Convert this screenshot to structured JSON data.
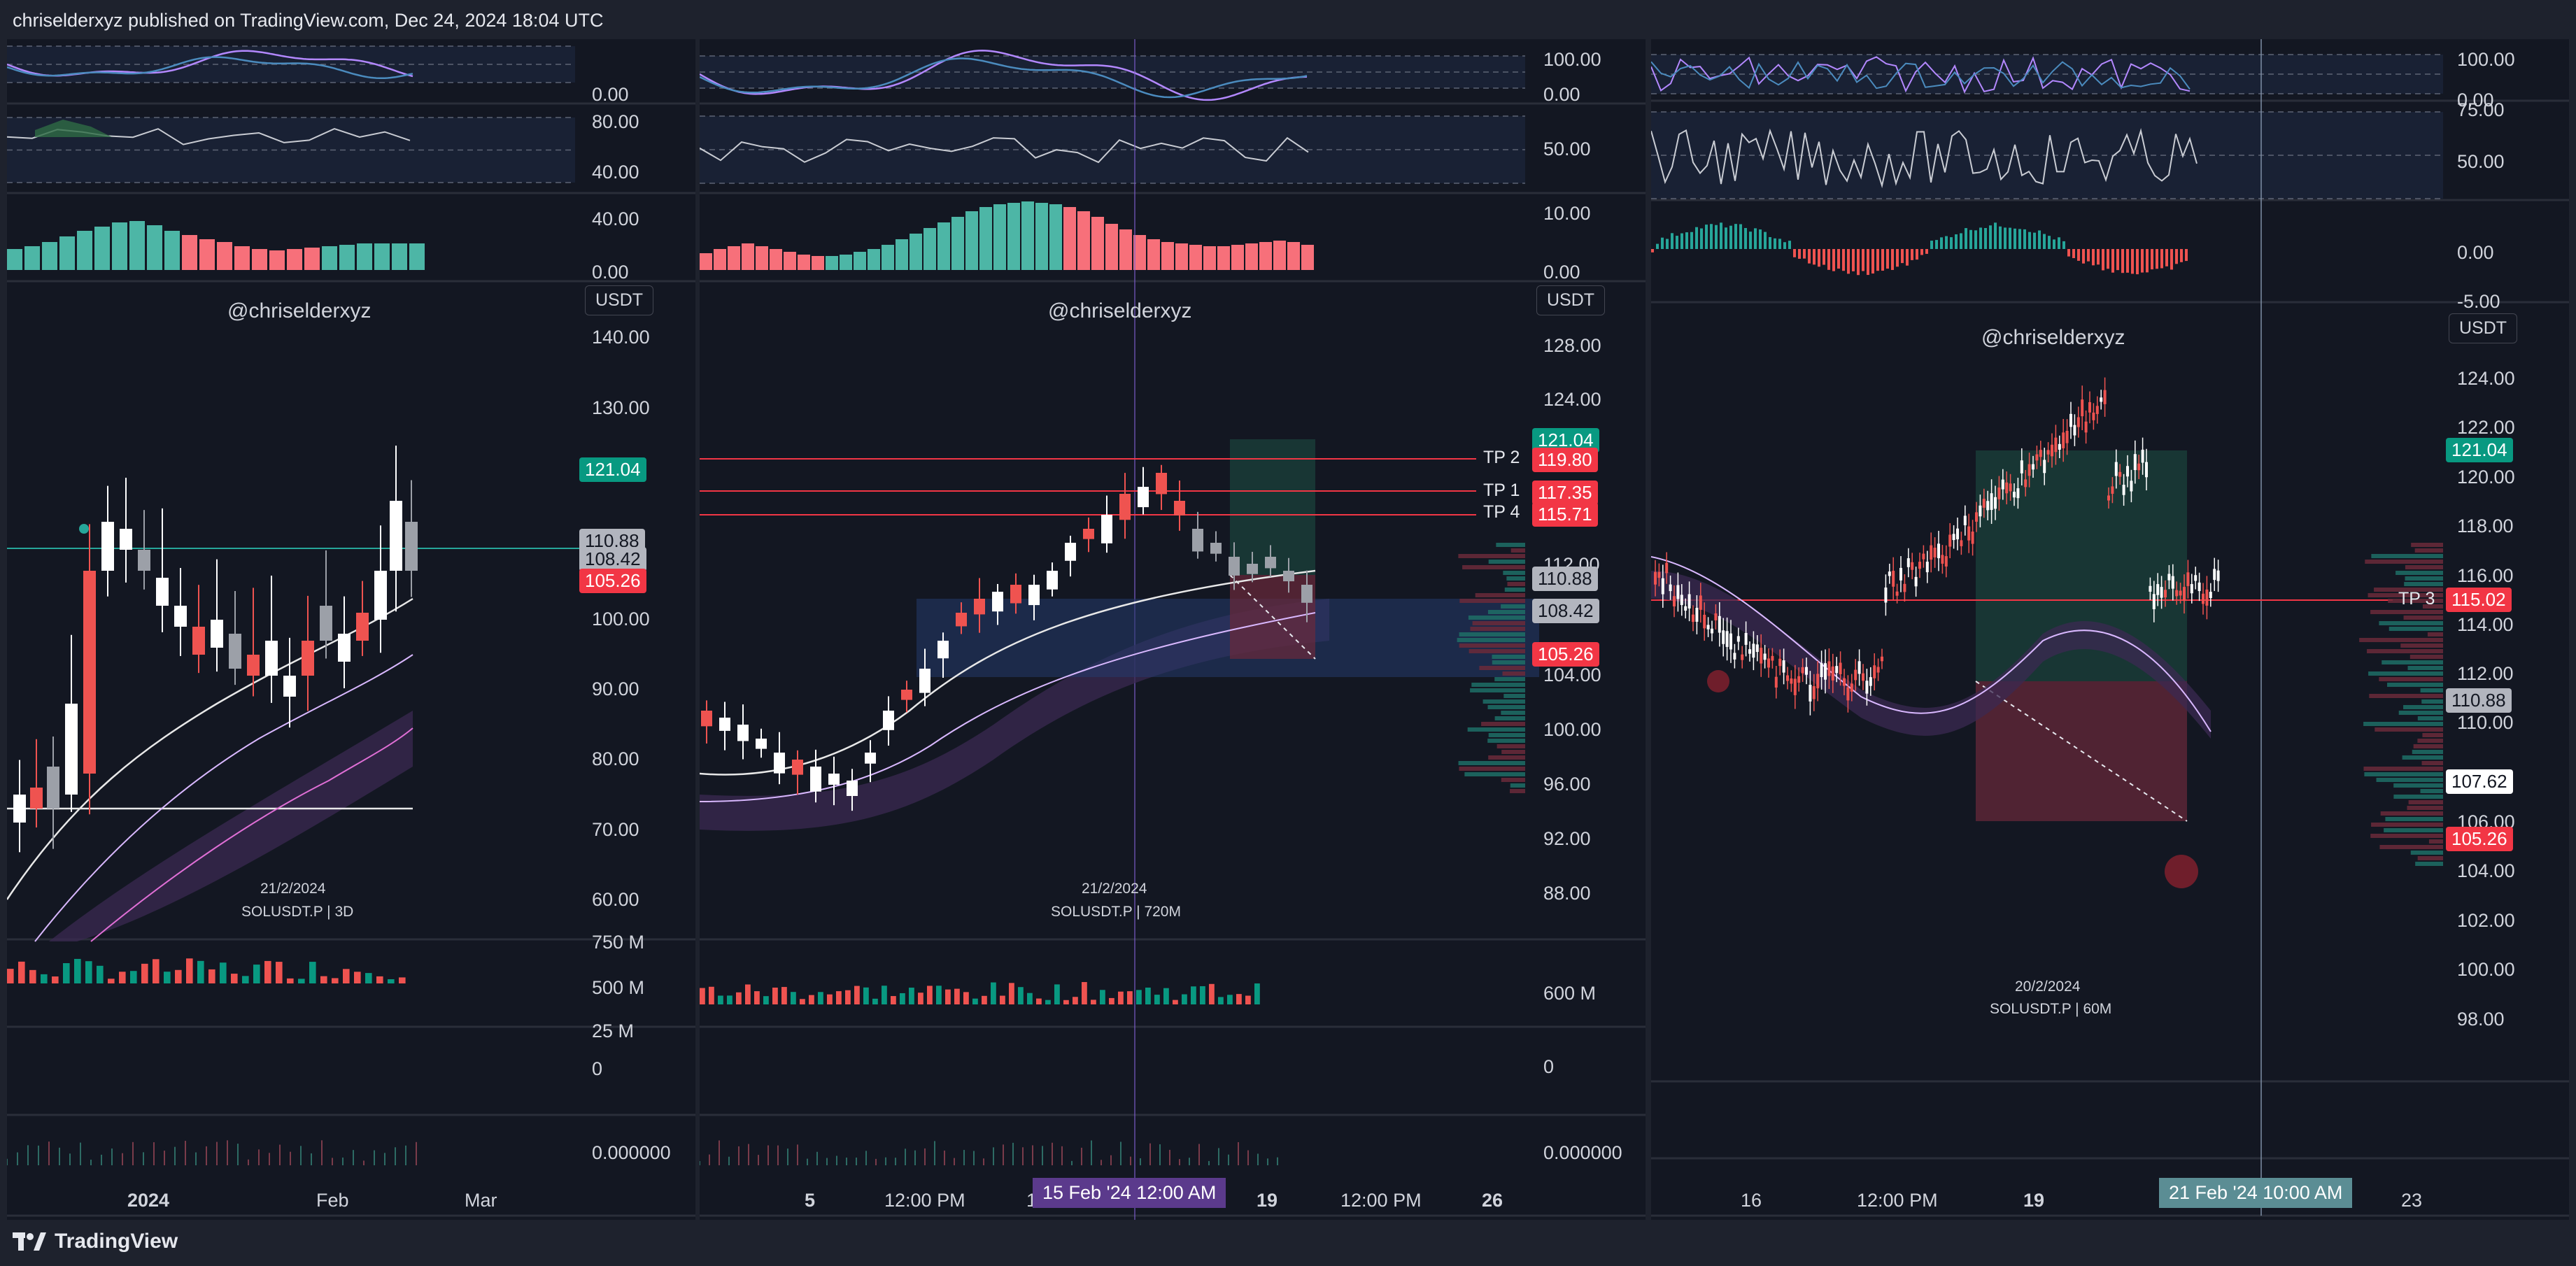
{
  "header": {
    "publisher_line": "chriselderxyz published on TradingView.com, Dec 24, 2024 18:04 UTC"
  },
  "footer": {
    "brand": "TradingView"
  },
  "colors": {
    "up": "#26a69a",
    "down": "#ef5350",
    "bg": "#131722",
    "frame": "#1e222d",
    "line": "#f23645",
    "teal": "#089981"
  },
  "panels": [
    {
      "id": "left",
      "watermark": "@chriselderxyz",
      "currency": "USDT",
      "date_caption": "21/2/2024",
      "symbol_caption": "SOLUSDT.P | 3D",
      "osc1_ticks": [
        "0.00"
      ],
      "osc2_ticks": [
        "80.00",
        "40.00"
      ],
      "osc3_ticks": [
        "40.00",
        "0.00"
      ],
      "price_ticks": [
        "140.00",
        "130.00",
        "100.00",
        "90.00",
        "80.00",
        "70.00",
        "60.00"
      ],
      "price_tags": [
        {
          "label": "121.04",
          "kind": "green"
        },
        {
          "label": "110.88",
          "kind": "gray"
        },
        {
          "label": "108.42",
          "kind": "gray"
        },
        {
          "label": "105.26",
          "kind": "red"
        }
      ],
      "volume_ticks": [
        "750 M",
        "500 M",
        "25 M",
        "0"
      ],
      "funding_tick": "0.000000",
      "time_ticks": [
        "2024",
        "Feb",
        "Mar"
      ]
    },
    {
      "id": "middle",
      "watermark": "@chriselderxyz",
      "currency": "USDT",
      "date_caption": "21/2/2024",
      "symbol_caption": "SOLUSDT.P | 720M",
      "osc1_ticks": [
        "100.00",
        "0.00"
      ],
      "osc2_ticks": [
        "50.00"
      ],
      "osc3_ticks": [
        "10.00",
        "0.00"
      ],
      "price_ticks": [
        "128.00",
        "124.00",
        "112.00",
        "104.00",
        "100.00",
        "96.00",
        "92.00",
        "88.00"
      ],
      "tp_labels": [
        "TP 2",
        "TP 1",
        "TP 4"
      ],
      "price_tags": [
        {
          "label": "121.04",
          "kind": "green"
        },
        {
          "label": "119.80",
          "kind": "red"
        },
        {
          "label": "117.35",
          "kind": "red"
        },
        {
          "label": "115.71",
          "kind": "red"
        },
        {
          "label": "110.88",
          "kind": "gray"
        },
        {
          "label": "108.42",
          "kind": "gray"
        },
        {
          "label": "105.26",
          "kind": "red"
        }
      ],
      "volume_ticks": [
        "600 M",
        "0"
      ],
      "funding_tick": "0.000000",
      "time_ticks": [
        "5",
        "12:00 PM",
        "12",
        "19",
        "12:00 PM",
        "26"
      ],
      "crosshair_time": "15 Feb '24  12:00 AM"
    },
    {
      "id": "right",
      "watermark": "@chriselderxyz",
      "currency": "USDT",
      "date_caption": "20/2/2024",
      "symbol_caption": "SOLUSDT.P | 60M",
      "osc1_ticks": [
        "100.00",
        "0.00"
      ],
      "osc2_ticks": [
        "75.00",
        "50.00"
      ],
      "osc3_ticks": [
        "0.00",
        "-5.00"
      ],
      "price_ticks": [
        "124.00",
        "122.00",
        "120.00",
        "118.00",
        "116.00",
        "114.00",
        "112.00",
        "110.00",
        "106.00",
        "104.00",
        "102.00",
        "100.00",
        "98.00"
      ],
      "tp_labels": [
        "TP 3"
      ],
      "price_tags": [
        {
          "label": "121.04",
          "kind": "green"
        },
        {
          "label": "115.02",
          "kind": "red"
        },
        {
          "label": "110.88",
          "kind": "gray"
        },
        {
          "label": "107.62",
          "kind": "white"
        },
        {
          "label": "105.26",
          "kind": "red"
        }
      ],
      "time_ticks": [
        "16",
        "12:00 PM",
        "19",
        "23"
      ],
      "crosshair_time": "21 Feb '24   10:00 AM"
    }
  ]
}
